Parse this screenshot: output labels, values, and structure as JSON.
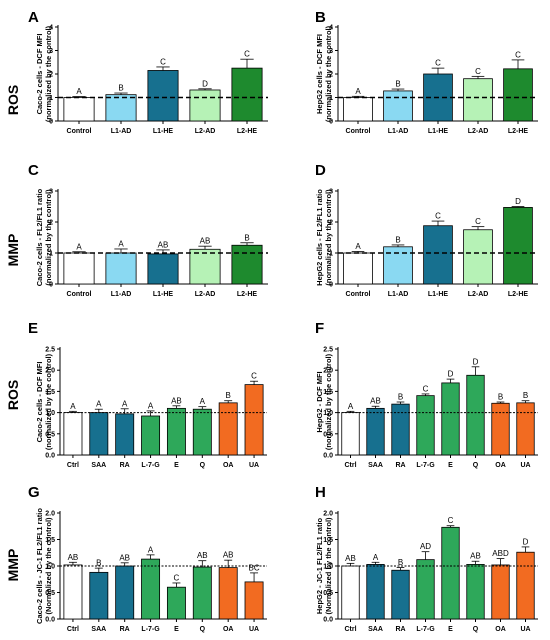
{
  "row_labels": [
    "ROS",
    "MMP",
    "ROS",
    "MMP"
  ],
  "colors": {
    "white": "#ffffff",
    "lightblue": "#8ad9f2",
    "teal": "#17708f",
    "lightgreen": "#b6f2b6",
    "green": "#1e8a2e",
    "seagreen": "#2ea85a",
    "orange": "#f26b21"
  },
  "chart_data": [
    {
      "type": "bar",
      "letter": "A",
      "ylabel_lines": [
        "Caco-2 cells - DCF MFI",
        "(normalized by the control)"
      ],
      "ylim": [
        0,
        4
      ],
      "yticks": [
        0,
        1,
        2,
        3,
        4
      ],
      "reference_line": 1,
      "categories": [
        "Control",
        "L1-AD",
        "L1-HE",
        "L2-AD",
        "L2-HE"
      ],
      "values": [
        1.0,
        1.12,
        2.15,
        1.32,
        2.25
      ],
      "errors": [
        0.04,
        0.07,
        0.15,
        0.05,
        0.38
      ],
      "labels": [
        "A",
        "B",
        "C",
        "D",
        "C"
      ],
      "colors": [
        "white",
        "lightblue",
        "teal",
        "lightgreen",
        "green"
      ]
    },
    {
      "type": "bar",
      "letter": "B",
      "ylabel_lines": [
        "HepG2 cells - DCF MFI",
        "(normalized by the control)"
      ],
      "ylim": [
        0,
        4
      ],
      "yticks": [
        0,
        1,
        2,
        3,
        4
      ],
      "reference_line": 1,
      "categories": [
        "Control",
        "L1-AD",
        "L1-HE",
        "L2-AD",
        "L2-HE"
      ],
      "values": [
        1.0,
        1.28,
        2.0,
        1.8,
        2.22
      ],
      "errors": [
        0.05,
        0.08,
        0.25,
        0.1,
        0.38
      ],
      "labels": [
        "A",
        "B",
        "C",
        "C",
        "C"
      ],
      "colors": [
        "white",
        "lightblue",
        "teal",
        "lightgreen",
        "green"
      ]
    },
    {
      "type": "bar",
      "letter": "C",
      "ylabel_lines": [
        "Caco-2 cells - FL2/FL1 ratio",
        "(normalized by the control)"
      ],
      "ylim": [
        0,
        3
      ],
      "yticks": [
        0,
        1,
        2,
        3
      ],
      "reference_line": 1,
      "categories": [
        "Control",
        "L1-AD",
        "L1-HE",
        "L2-AD",
        "L2-HE"
      ],
      "values": [
        1.0,
        1.0,
        0.97,
        1.12,
        1.25
      ],
      "errors": [
        0.04,
        0.13,
        0.13,
        0.1,
        0.08
      ],
      "labels": [
        "A",
        "A",
        "AB",
        "AB",
        "B"
      ],
      "colors": [
        "white",
        "lightblue",
        "teal",
        "lightgreen",
        "green"
      ]
    },
    {
      "type": "bar",
      "letter": "D",
      "ylabel_lines": [
        "HepG2 cells - FL2/FL1 ratio",
        "(normalized by the control)"
      ],
      "ylim": [
        0,
        3
      ],
      "yticks": [
        0,
        1,
        2,
        3
      ],
      "reference_line": 1,
      "categories": [
        "Control",
        "L1-AD",
        "L1-HE",
        "L2-AD",
        "L2-HE"
      ],
      "values": [
        1.0,
        1.2,
        1.88,
        1.75,
        2.47
      ],
      "errors": [
        0.05,
        0.06,
        0.15,
        0.1,
        0.03
      ],
      "labels": [
        "A",
        "B",
        "C",
        "C",
        "D"
      ],
      "colors": [
        "white",
        "lightblue",
        "teal",
        "lightgreen",
        "green"
      ]
    },
    {
      "type": "bar",
      "letter": "E",
      "ylabel_lines": [
        "Caco-2 cells - DCF MFI",
        "(normalized by the control)"
      ],
      "ylim": [
        0,
        2.5
      ],
      "yticks": [
        0.0,
        0.5,
        1.0,
        1.5,
        2.0,
        2.5
      ],
      "reference_line": 1,
      "categories": [
        "Ctrl",
        "SAA",
        "RA",
        "L-7-G",
        "E",
        "Q",
        "OA",
        "UA"
      ],
      "values": [
        1.0,
        1.0,
        0.97,
        0.92,
        1.1,
        1.08,
        1.23,
        1.66
      ],
      "errors": [
        0.03,
        0.08,
        0.12,
        0.12,
        0.06,
        0.06,
        0.05,
        0.08
      ],
      "labels": [
        "A",
        "A",
        "A",
        "A",
        "AB",
        "A",
        "B",
        "C"
      ],
      "colors": [
        "white",
        "teal",
        "teal",
        "seagreen",
        "seagreen",
        "seagreen",
        "orange",
        "orange"
      ]
    },
    {
      "type": "bar",
      "letter": "F",
      "ylabel_lines": [
        "HepG2 - DCF MFI",
        "(normalized by the control)"
      ],
      "ylim": [
        0,
        2.5
      ],
      "yticks": [
        0.0,
        0.5,
        1.0,
        1.5,
        2.0,
        2.5
      ],
      "reference_line": 1,
      "categories": [
        "Ctrl",
        "SAA",
        "RA",
        "L-7-G",
        "E",
        "Q",
        "OA",
        "UA"
      ],
      "values": [
        1.0,
        1.1,
        1.2,
        1.4,
        1.7,
        1.88,
        1.22,
        1.23
      ],
      "errors": [
        0.03,
        0.05,
        0.05,
        0.04,
        0.09,
        0.2,
        0.03,
        0.05
      ],
      "labels": [
        "A",
        "AB",
        "B",
        "C",
        "D",
        "D",
        "B",
        "B"
      ],
      "colors": [
        "white",
        "teal",
        "teal",
        "seagreen",
        "seagreen",
        "seagreen",
        "orange",
        "orange"
      ]
    },
    {
      "type": "bar",
      "letter": "G",
      "ylabel_lines": [
        "Caco-2 cells - JC-1 FL2/FL1 ratio",
        "(Normalized by the control)"
      ],
      "ylim": [
        0,
        2.0
      ],
      "yticks": [
        0.0,
        0.5,
        1.0,
        1.5,
        2.0
      ],
      "reference_line": 1,
      "categories": [
        "Ctrl",
        "SAA",
        "RA",
        "L-7-G",
        "E",
        "Q",
        "OA",
        "UA"
      ],
      "values": [
        1.02,
        0.88,
        1.0,
        1.13,
        0.6,
        0.98,
        0.97,
        0.7
      ],
      "errors": [
        0.05,
        0.08,
        0.06,
        0.08,
        0.08,
        0.12,
        0.14,
        0.17
      ],
      "labels": [
        "AB",
        "B",
        "AB",
        "A",
        "C",
        "AB",
        "AB",
        "BC"
      ],
      "colors": [
        "white",
        "teal",
        "teal",
        "seagreen",
        "seagreen",
        "seagreen",
        "orange",
        "orange"
      ]
    },
    {
      "type": "bar",
      "letter": "H",
      "ylabel_lines": [
        "HepG2 - JC-1 FL2/FL1 ratio",
        "(Normalized by the control)"
      ],
      "ylim": [
        0,
        2.0
      ],
      "yticks": [
        0.0,
        0.5,
        1.0,
        1.5,
        2.0
      ],
      "reference_line": 1,
      "categories": [
        "Ctrl",
        "SAA",
        "RA",
        "L-7-G",
        "E",
        "Q",
        "OA",
        "UA"
      ],
      "values": [
        1.0,
        1.03,
        0.92,
        1.12,
        1.73,
        1.03,
        1.02,
        1.26
      ],
      "errors": [
        0.05,
        0.04,
        0.05,
        0.15,
        0.03,
        0.06,
        0.12,
        0.1
      ],
      "labels": [
        "AB",
        "A",
        "B",
        "AD",
        "C",
        "AB",
        "ABD",
        "D"
      ],
      "colors": [
        "white",
        "teal",
        "teal",
        "seagreen",
        "seagreen",
        "seagreen",
        "orange",
        "orange"
      ]
    }
  ]
}
